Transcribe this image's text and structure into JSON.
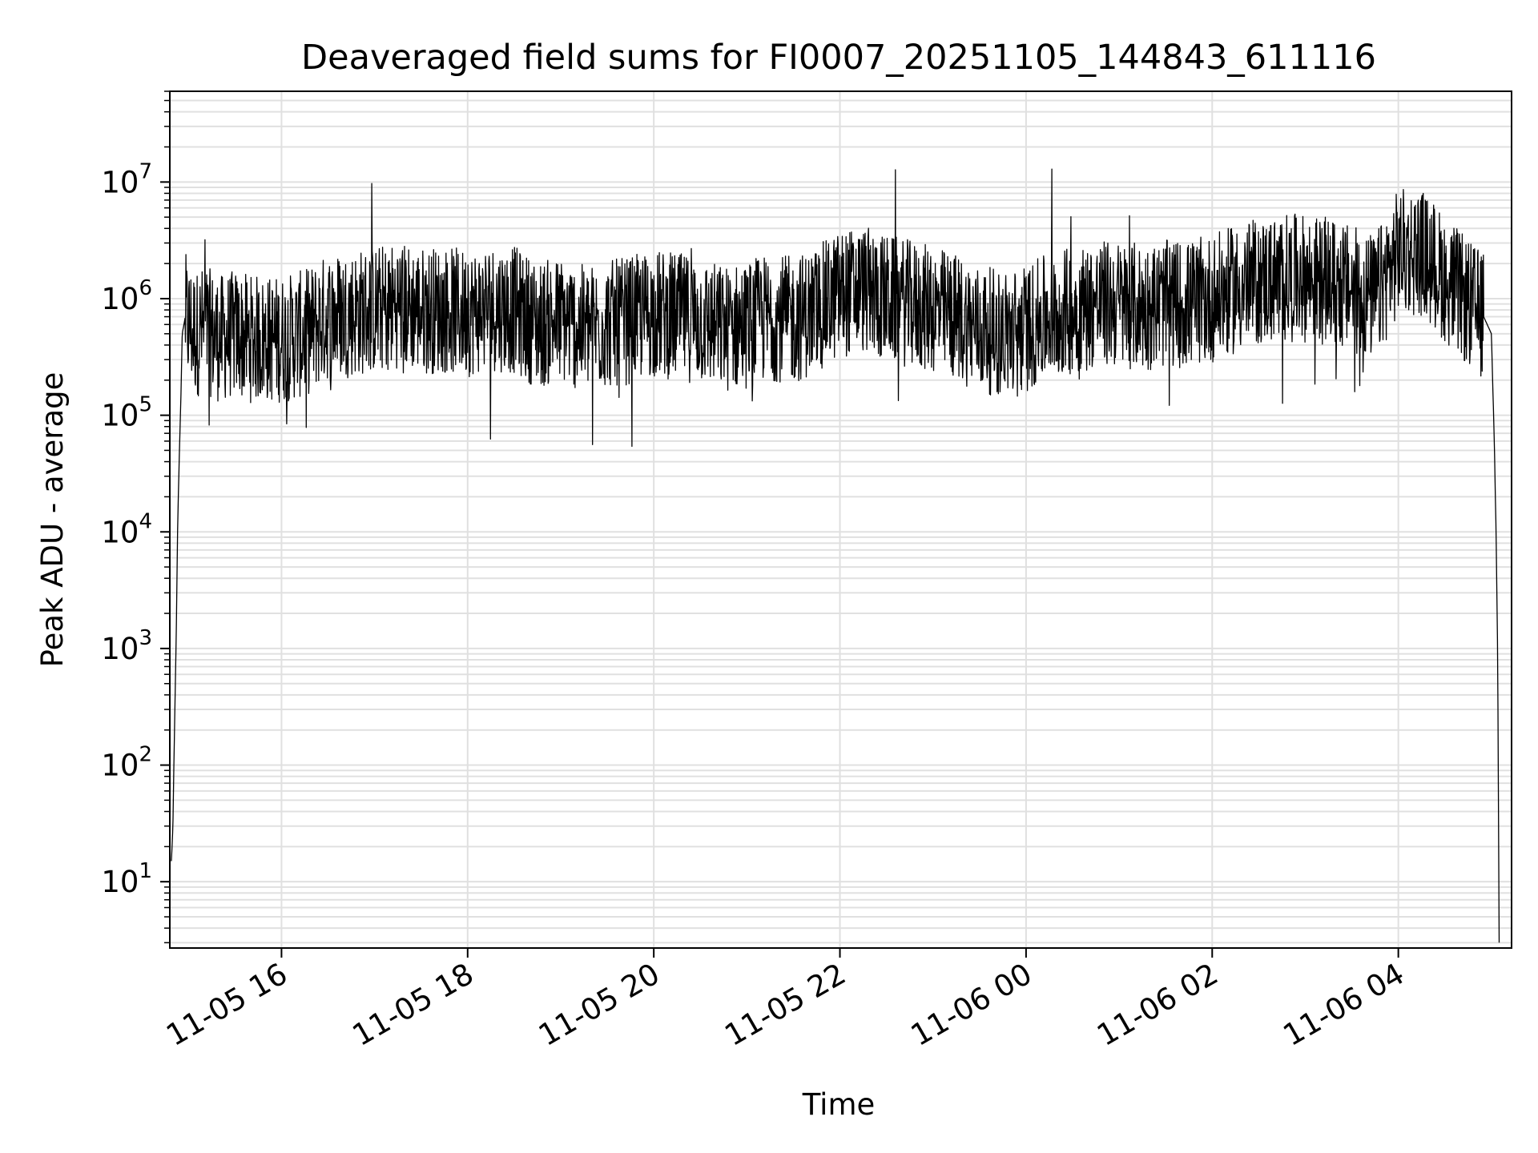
{
  "chart_data": {
    "type": "line",
    "title": "Deaveraged field sums for FI0007_20251105_144843_611116",
    "xlabel": "Time",
    "ylabel": "Peak ADU - average",
    "y_scale": "log",
    "ylim": [
      2.7,
      60000000
    ],
    "xlim": [
      "11-05 14:48",
      "11-06 05:13"
    ],
    "grid": true,
    "line_color": "#000000",
    "grid_color": "#e0e0e0",
    "x_ticks": [
      "11-05 16",
      "11-05 18",
      "11-05 20",
      "11-05 22",
      "11-06 00",
      "11-06 02",
      "11-06 04"
    ],
    "y_ticks": [
      {
        "base": "10",
        "exp": "1"
      },
      {
        "base": "10",
        "exp": "2"
      },
      {
        "base": "10",
        "exp": "3"
      },
      {
        "base": "10",
        "exp": "4"
      },
      {
        "base": "10",
        "exp": "5"
      },
      {
        "base": "10",
        "exp": "6"
      },
      {
        "base": "10",
        "exp": "7"
      }
    ],
    "series": [
      {
        "x": [
          "11-05 14:49",
          "11-05 14:50",
          "11-05 14:51",
          "11-05 14:52",
          "11-05 14:53",
          "11-05 14:54",
          "11-05 14:55",
          "11-05 14:56",
          "11-05 14:58",
          "11-05 15:00",
          "11-05 15:05",
          "11-05 15:10",
          "11-05 15:15",
          "11-05 15:20",
          "11-05 15:30",
          "11-05 15:40",
          "11-05 15:50",
          "11-05 16:00",
          "11-05 16:15",
          "11-05 16:30",
          "11-05 16:45",
          "11-05 17:00",
          "11-05 17:15",
          "11-05 17:30",
          "11-05 17:45",
          "11-05 18:00",
          "11-05 18:15",
          "11-05 18:30",
          "11-05 18:45",
          "11-05 19:00",
          "11-05 19:15",
          "11-05 19:30",
          "11-05 19:45",
          "11-05 20:00",
          "11-05 20:15",
          "11-05 20:30",
          "11-05 20:45",
          "11-05 21:00",
          "11-05 21:15",
          "11-05 21:30",
          "11-05 21:45",
          "11-05 22:00",
          "11-05 22:15",
          "11-05 22:30",
          "11-05 22:45",
          "11-05 23:00",
          "11-05 23:15",
          "11-05 23:30",
          "11-05 23:45",
          "11-06 00:00",
          "11-06 00:15",
          "11-06 00:30",
          "11-06 00:45",
          "11-06 01:00",
          "11-06 01:15",
          "11-06 01:30",
          "11-06 01:45",
          "11-06 02:00",
          "11-06 02:15",
          "11-06 02:30",
          "11-06 02:45",
          "11-06 03:00",
          "11-06 03:15",
          "11-06 03:30",
          "11-06 03:45",
          "11-06 04:00",
          "11-06 04:15",
          "11-06 04:30",
          "11-06 04:45",
          "11-06 04:55",
          "11-06 05:00",
          "11-06 05:02",
          "11-06 05:03",
          "11-06 05:04",
          "11-06 05:05"
        ],
        "y": [
          15,
          30,
          200,
          1000,
          10000,
          40000,
          120000,
          500000,
          700000,
          600000,
          500000,
          550000,
          500000,
          450000,
          500000,
          450000,
          450000,
          450000,
          500000,
          700000,
          750000,
          800000,
          900000,
          800000,
          800000,
          750000,
          850000,
          800000,
          600000,
          650000,
          550000,
          600000,
          650000,
          750000,
          700000,
          650000,
          550000,
          600000,
          700000,
          650000,
          800000,
          1100000,
          1200000,
          1000000,
          900000,
          800000,
          700000,
          550000,
          500000,
          550000,
          700000,
          800000,
          900000,
          900000,
          850000,
          900000,
          900000,
          1000000,
          1200000,
          1400000,
          1500000,
          1500000,
          1400000,
          1200000,
          1000000,
          2500000,
          2500000,
          1500000,
          900000,
          700000,
          500000,
          50000,
          10000,
          1000,
          3
        ]
      }
    ]
  }
}
